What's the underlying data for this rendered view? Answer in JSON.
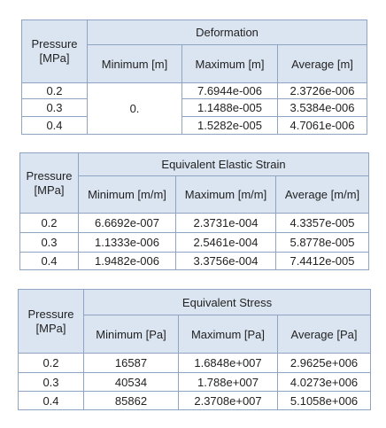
{
  "tables": [
    {
      "pressure_header": "Pressure [MPa]",
      "group_header": "Deformation",
      "column_headers": [
        "Minimum [m]",
        "Maximum [m]",
        "Average [m]"
      ],
      "merged_minimum": "0.",
      "rows": [
        [
          "0.2",
          "7.6944e-006",
          "2.3726e-006"
        ],
        [
          "0.3",
          "1.1488e-005",
          "3.5384e-006"
        ],
        [
          "0.4",
          "1.5282e-005",
          "4.7061e-006"
        ]
      ]
    },
    {
      "pressure_header": "Pressure [MPa]",
      "group_header": "Equivalent Elastic Strain",
      "column_headers": [
        "Minimum [m/m]",
        "Maximum [m/m]",
        "Average [m/m]"
      ],
      "rows": [
        [
          "0.2",
          "6.6692e-007",
          "2.3731e-004",
          "4.3357e-005"
        ],
        [
          "0.3",
          "1.1333e-006",
          "2.5461e-004",
          "5.8778e-005"
        ],
        [
          "0.4",
          "1.9482e-006",
          "3.3756e-004",
          "7.4412e-005"
        ]
      ]
    },
    {
      "pressure_header": "Pressure [MPa]",
      "group_header": "Equivalent Stress",
      "column_headers": [
        "Minimum [Pa]",
        "Maximum [Pa]",
        "Average [Pa]"
      ],
      "rows": [
        [
          "0.2",
          "16587",
          "1.6848e+007",
          "2.9625e+006"
        ],
        [
          "0.3",
          "40534",
          "1.788e+007",
          "4.0273e+006"
        ],
        [
          "0.4",
          "85862",
          "2.3708e+007",
          "5.1058e+006"
        ]
      ]
    }
  ]
}
